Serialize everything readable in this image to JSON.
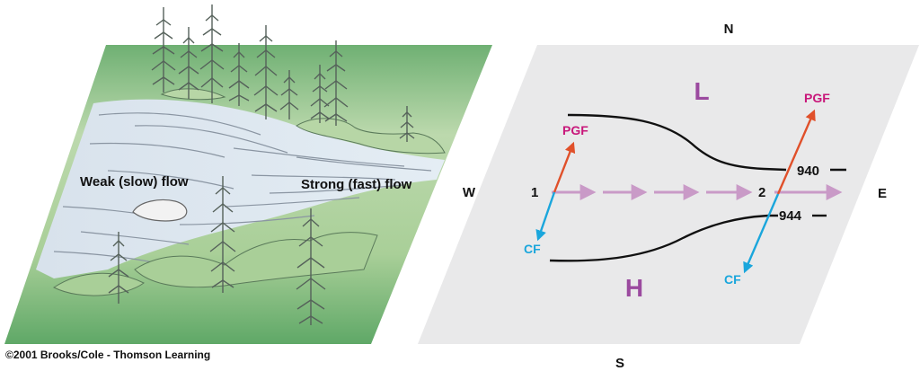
{
  "left_panel": {
    "weak_label": "Weak (slow) flow",
    "strong_label": "Strong (fast) flow"
  },
  "right_panel": {
    "compass": {
      "north": "N",
      "south": "S",
      "west": "W",
      "east": "E"
    },
    "low_label": "L",
    "high_label": "H",
    "isobars": [
      "940",
      "944"
    ],
    "points": [
      "1",
      "2"
    ],
    "force_labels": {
      "pgf": "PGF",
      "cf": "CF"
    }
  },
  "credit": "©2001 Brooks/Cole - Thomson Learning",
  "colors": {
    "pgf": "#e0502a",
    "pgf_text": "#c8167a",
    "cf": "#1aa6dc",
    "flow_arrow": "#c99ac7",
    "pressure_letter": "#9b4a9f",
    "right_plane": "#e9e9ea",
    "water": "#dde6ee",
    "grass": "#8fc38a"
  }
}
